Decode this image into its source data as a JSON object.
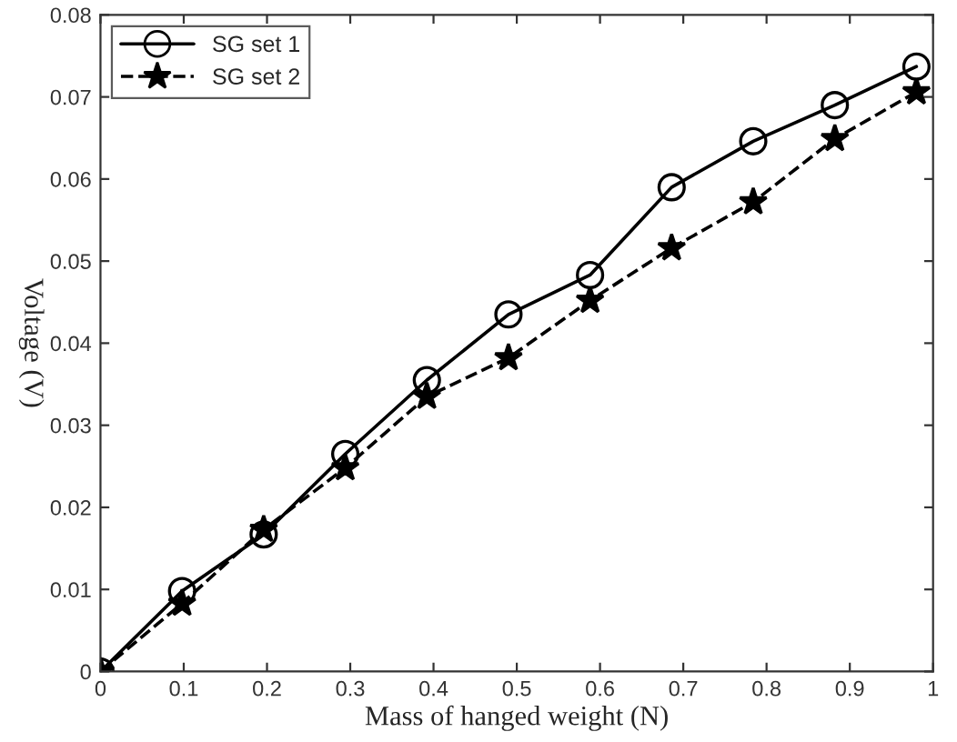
{
  "chart_data": {
    "type": "line",
    "xlabel": "Mass of hanged weight (N)",
    "ylabel": "Voltage (V)",
    "x": [
      0,
      0.098,
      0.196,
      0.294,
      0.392,
      0.49,
      0.588,
      0.686,
      0.784,
      0.882,
      0.98
    ],
    "series": [
      {
        "name": "SG set 1",
        "color": "#000000",
        "marker": "circle",
        "line_style": "solid",
        "values": [
          0,
          0.0098,
          0.0167,
          0.0265,
          0.0355,
          0.0435,
          0.0483,
          0.059,
          0.0646,
          0.069,
          0.0737
        ]
      },
      {
        "name": "SG set 2",
        "color": "#000000",
        "marker": "star",
        "line_style": "dashed",
        "values": [
          0,
          0.0083,
          0.0173,
          0.0248,
          0.0335,
          0.0382,
          0.0452,
          0.0516,
          0.0572,
          0.0649,
          0.0706
        ]
      }
    ],
    "xlim": [
      0,
      1
    ],
    "xticks": [
      0,
      0.1,
      0.2,
      0.3,
      0.4,
      0.5,
      0.6,
      0.7,
      0.8,
      0.9,
      1
    ],
    "ylim": [
      0,
      0.08
    ],
    "yticks": [
      0,
      0.01,
      0.02,
      0.03,
      0.04,
      0.05,
      0.06,
      0.07,
      0.08
    ],
    "grid": false,
    "legend": "top left"
  }
}
